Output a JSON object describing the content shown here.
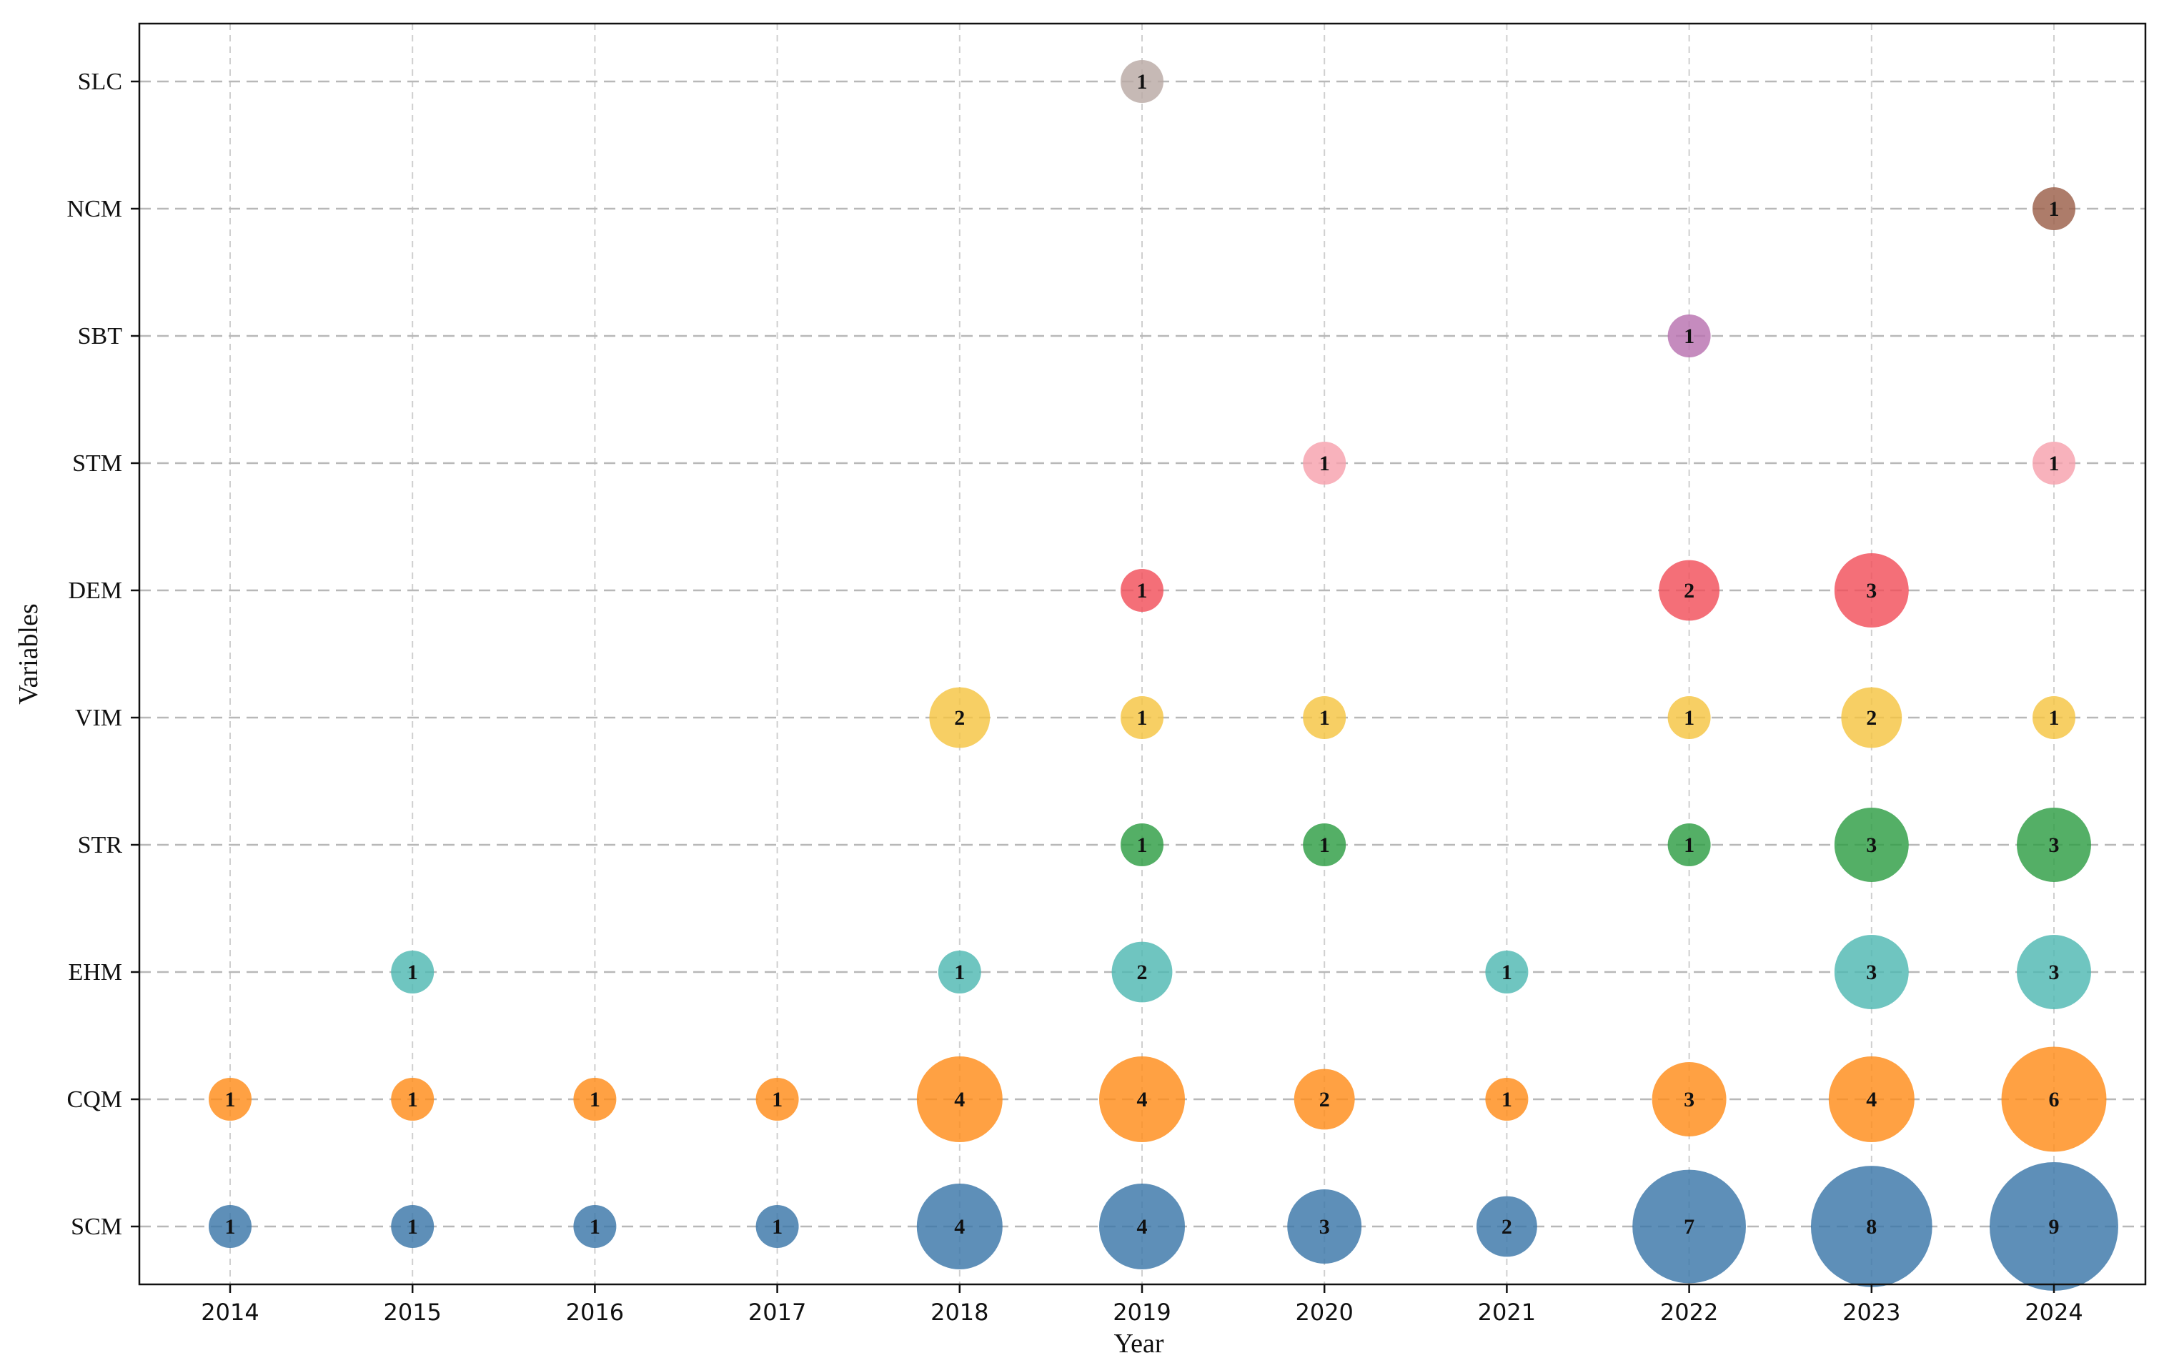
{
  "chart_data": {
    "type": "scatter",
    "subtype": "bubble",
    "title": "",
    "xlabel": "Year",
    "ylabel": "Variables",
    "x_categories": [
      "2014",
      "2015",
      "2016",
      "2017",
      "2018",
      "2019",
      "2020",
      "2021",
      "2022",
      "2023",
      "2024"
    ],
    "y_categories": [
      "SCM",
      "CQM",
      "EHM",
      "STR",
      "VIM",
      "DEM",
      "STM",
      "SBT",
      "NCM",
      "SLC"
    ],
    "grid": true,
    "colors": {
      "SCM": "#3b76a8",
      "CQM": "#ff8c1a",
      "EHM": "#4fb8b2",
      "STR": "#2e9e44",
      "VIM": "#f5c542",
      "DEM": "#f24f5a",
      "STM": "#f7a1ad",
      "SBT": "#b872b0",
      "NCM": "#9b5f49",
      "SLC": "#b9aaa5"
    },
    "series": [
      {
        "name": "SCM",
        "points": [
          {
            "x": "2014",
            "value": 1
          },
          {
            "x": "2015",
            "value": 1
          },
          {
            "x": "2016",
            "value": 1
          },
          {
            "x": "2017",
            "value": 1
          },
          {
            "x": "2018",
            "value": 4
          },
          {
            "x": "2019",
            "value": 4
          },
          {
            "x": "2020",
            "value": 3
          },
          {
            "x": "2021",
            "value": 2
          },
          {
            "x": "2022",
            "value": 7
          },
          {
            "x": "2023",
            "value": 8
          },
          {
            "x": "2024",
            "value": 9
          }
        ]
      },
      {
        "name": "CQM",
        "points": [
          {
            "x": "2014",
            "value": 1
          },
          {
            "x": "2015",
            "value": 1
          },
          {
            "x": "2016",
            "value": 1
          },
          {
            "x": "2017",
            "value": 1
          },
          {
            "x": "2018",
            "value": 4
          },
          {
            "x": "2019",
            "value": 4
          },
          {
            "x": "2020",
            "value": 2
          },
          {
            "x": "2021",
            "value": 1
          },
          {
            "x": "2022",
            "value": 3
          },
          {
            "x": "2023",
            "value": 4
          },
          {
            "x": "2024",
            "value": 6
          }
        ]
      },
      {
        "name": "EHM",
        "points": [
          {
            "x": "2015",
            "value": 1
          },
          {
            "x": "2018",
            "value": 1
          },
          {
            "x": "2019",
            "value": 2
          },
          {
            "x": "2021",
            "value": 1
          },
          {
            "x": "2023",
            "value": 3
          },
          {
            "x": "2024",
            "value": 3
          }
        ]
      },
      {
        "name": "STR",
        "points": [
          {
            "x": "2019",
            "value": 1
          },
          {
            "x": "2020",
            "value": 1
          },
          {
            "x": "2022",
            "value": 1
          },
          {
            "x": "2023",
            "value": 3
          },
          {
            "x": "2024",
            "value": 3
          }
        ]
      },
      {
        "name": "VIM",
        "points": [
          {
            "x": "2018",
            "value": 2
          },
          {
            "x": "2019",
            "value": 1
          },
          {
            "x": "2020",
            "value": 1
          },
          {
            "x": "2022",
            "value": 1
          },
          {
            "x": "2023",
            "value": 2
          },
          {
            "x": "2024",
            "value": 1
          }
        ]
      },
      {
        "name": "DEM",
        "points": [
          {
            "x": "2019",
            "value": 1
          },
          {
            "x": "2022",
            "value": 2
          },
          {
            "x": "2023",
            "value": 3
          }
        ]
      },
      {
        "name": "STM",
        "points": [
          {
            "x": "2020",
            "value": 1
          },
          {
            "x": "2024",
            "value": 1
          }
        ]
      },
      {
        "name": "SBT",
        "points": [
          {
            "x": "2022",
            "value": 1
          }
        ]
      },
      {
        "name": "NCM",
        "points": [
          {
            "x": "2024",
            "value": 1
          }
        ]
      },
      {
        "name": "SLC",
        "points": [
          {
            "x": "2019",
            "value": 1
          }
        ]
      }
    ]
  }
}
